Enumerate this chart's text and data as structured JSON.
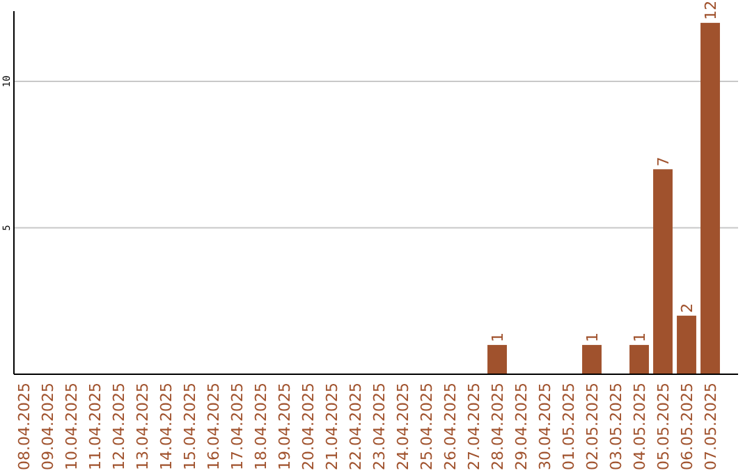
{
  "chart_data": {
    "type": "bar",
    "categories": [
      "08.04.2025",
      "09.04.2025",
      "10.04.2025",
      "11.04.2025",
      "12.04.2025",
      "13.04.2025",
      "14.04.2025",
      "15.04.2025",
      "16.04.2025",
      "17.04.2025",
      "18.04.2025",
      "19.04.2025",
      "20.04.2025",
      "21.04.2025",
      "22.04.2025",
      "23.04.2025",
      "24.04.2025",
      "25.04.2025",
      "26.04.2025",
      "27.04.2025",
      "28.04.2025",
      "29.04.2025",
      "30.04.2025",
      "01.05.2025",
      "02.05.2025",
      "03.05.2025",
      "04.05.2025",
      "05.05.2025",
      "06.05.2025",
      "07.05.2025"
    ],
    "values": [
      0,
      0,
      0,
      0,
      0,
      0,
      0,
      0,
      0,
      0,
      0,
      0,
      0,
      0,
      0,
      0,
      0,
      0,
      0,
      0,
      1,
      0,
      0,
      0,
      1,
      0,
      1,
      7,
      2,
      12
    ],
    "value_labels": [
      null,
      null,
      null,
      null,
      null,
      null,
      null,
      null,
      null,
      null,
      null,
      null,
      null,
      null,
      null,
      null,
      null,
      null,
      null,
      null,
      "1",
      null,
      null,
      null,
      "1",
      null,
      "1",
      "7",
      "2",
      "12"
    ],
    "color": "#a0522d",
    "ylim": [
      0,
      12.4
    ],
    "yticks": [
      5,
      10
    ],
    "grid": "y"
  }
}
